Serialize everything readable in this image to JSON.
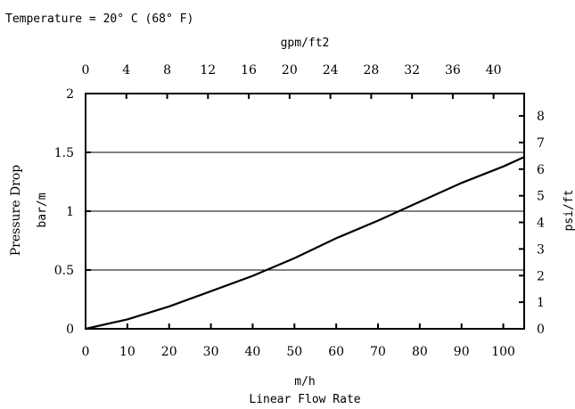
{
  "chart_data": {
    "type": "line",
    "title": "Temperature = 20° C (68° F)",
    "xlabel_unit": "m/h",
    "xlabel": "Linear Flow Rate",
    "x_top_label": "gpm/ft2",
    "ylabel_left": "Pressure Drop",
    "ylabel_left_unit": "bar/m",
    "ylabel_right": "psi/ft",
    "xlim": [
      0,
      105
    ],
    "ylim": [
      0,
      2
    ],
    "x_top_lim": [
      0,
      43
    ],
    "y_right_lim": [
      0,
      8.84
    ],
    "x_ticks": [
      "0",
      "10",
      "20",
      "30",
      "40",
      "50",
      "60",
      "70",
      "80",
      "90",
      "100"
    ],
    "x_top_ticks": [
      "0",
      "4",
      "8",
      "12",
      "16",
      "20",
      "24",
      "28",
      "32",
      "36",
      "40"
    ],
    "y_left_ticks": [
      "0",
      "0.5",
      "1",
      "1.5",
      "2"
    ],
    "y_right_ticks": [
      "0",
      "1",
      "2",
      "3",
      "4",
      "5",
      "6",
      "7",
      "8"
    ],
    "grid": "horizontal",
    "series": [
      {
        "x": [
          0,
          10,
          20,
          30,
          40,
          50,
          60,
          70,
          80,
          90,
          100,
          105
        ],
        "y": [
          0,
          0.08,
          0.19,
          0.32,
          0.45,
          0.6,
          0.77,
          0.92,
          1.08,
          1.24,
          1.38,
          1.46
        ]
      }
    ]
  }
}
